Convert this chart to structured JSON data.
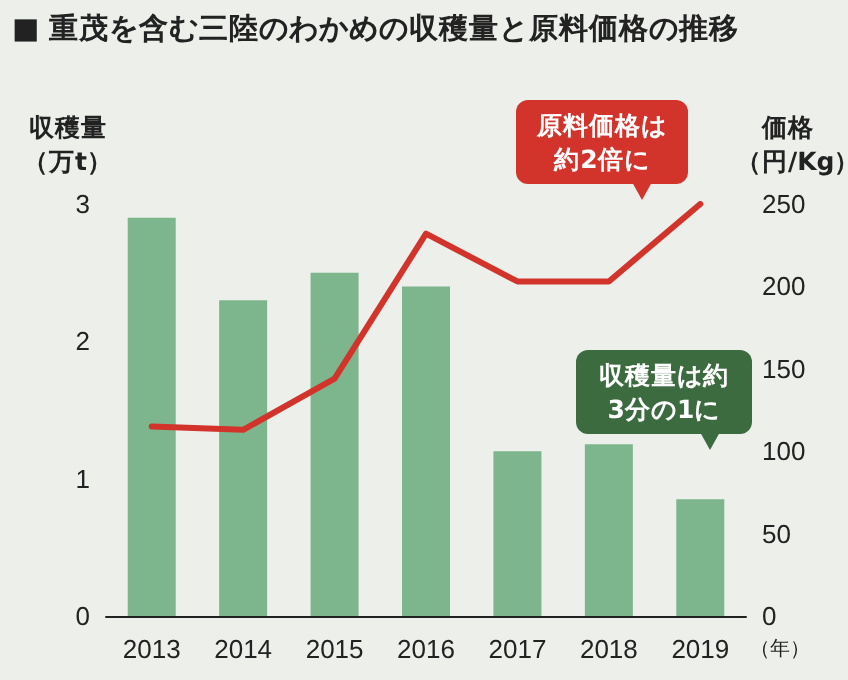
{
  "chart_data": {
    "type": "bar",
    "title": "■ 重茂を含む三陸のわかめの収穫量と原料価格の推移",
    "ylabel": "収穫量（万t）",
    "y2label": "価格（円/Kg）",
    "xlabel": "（年）",
    "categories": [
      "2013",
      "2014",
      "2015",
      "2016",
      "2017",
      "2018",
      "2019"
    ],
    "series": [
      {
        "color": "#7db58c",
        "values": [
          2.9,
          2.3,
          2.5,
          2.4,
          1.2,
          1.25,
          0.85
        ]
      },
      {
        "type": "line",
        "color": "#d2342c",
        "axis": "y2",
        "values": [
          115,
          113,
          144,
          232,
          203,
          203,
          250
        ]
      }
    ],
    "ylim": [
      0,
      3
    ],
    "yticks": [
      0,
      1,
      2,
      3
    ],
    "y2lim": [
      0,
      250
    ],
    "y2ticks": [
      0,
      50,
      100,
      150,
      200,
      250
    ],
    "grid": false,
    "marker": "none",
    "annotations": [
      "原料価格は約2倍に",
      "収穫量は約3分の1に"
    ]
  }
}
